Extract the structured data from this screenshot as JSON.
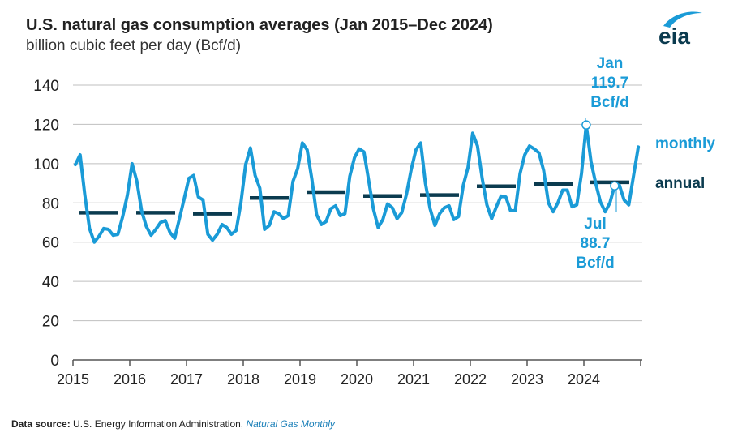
{
  "title": "U.S. natural gas consumption averages (Jan 2015–Dec 2024)",
  "subtitle": "billion cubic feet per day (Bcf/d)",
  "logo_text": "eia",
  "source": {
    "label": "Data source:",
    "agency": "U.S. Energy Information Administration,",
    "publication": "Natural Gas Monthly"
  },
  "colors": {
    "monthly": "#1a9bd7",
    "annual": "#0b3b4f",
    "grid": "#bfbfbf",
    "axis": "#555555"
  },
  "chart_data": {
    "type": "line",
    "xlabel": "",
    "ylabel": "",
    "ylim": [
      0,
      140
    ],
    "yticks": [
      0,
      20,
      40,
      60,
      80,
      100,
      120,
      140
    ],
    "xticks": [
      "2015",
      "2016",
      "2017",
      "2018",
      "2019",
      "2020",
      "2021",
      "2022",
      "2023",
      "2024"
    ],
    "grid": true,
    "series": [
      {
        "name": "monthly",
        "start": "2015-01",
        "values": [
          99.5,
          104.5,
          84,
          67,
          60,
          63,
          67,
          66.5,
          63.5,
          64,
          73,
          84,
          100,
          91,
          76,
          68,
          63.5,
          66.5,
          70,
          71,
          65,
          62,
          72,
          82,
          92.5,
          94,
          83,
          81.5,
          64,
          61,
          64,
          69,
          67.5,
          64,
          66,
          80,
          99.5,
          108,
          94,
          87.5,
          66.5,
          68.5,
          75.5,
          74.5,
          72,
          73.5,
          91,
          97.5,
          110.5,
          107,
          92,
          74,
          69,
          70.5,
          77,
          78.5,
          73.5,
          74.5,
          93.5,
          103,
          107.5,
          106,
          91.5,
          77,
          67.5,
          71.5,
          79.5,
          77.5,
          72,
          75,
          84.5,
          97,
          107,
          110.5,
          90,
          77,
          68.5,
          74.5,
          77.5,
          78.5,
          71.5,
          73,
          89,
          98,
          115.5,
          109,
          92.5,
          79,
          72,
          78,
          83.5,
          83,
          76,
          76,
          95,
          104.5,
          109,
          107.5,
          105.5,
          96.5,
          80,
          75.5,
          80,
          86.5,
          86.5,
          78,
          79,
          95,
          119.7,
          101,
          90,
          80.5,
          75.5,
          80,
          88.7,
          89,
          81.5,
          79,
          94,
          108.5
        ]
      },
      {
        "name": "annual",
        "years": [
          2015,
          2016,
          2017,
          2018,
          2019,
          2020,
          2021,
          2022,
          2023,
          2024
        ],
        "values": [
          75,
          75,
          74.5,
          82.5,
          85.5,
          83.5,
          84,
          88.5,
          89.5,
          90.5
        ]
      }
    ],
    "annotations": [
      {
        "id": "jan",
        "label": [
          "Jan",
          "119.7",
          "Bcf/d"
        ],
        "date": "2024-01",
        "value": 119.7
      },
      {
        "id": "jul",
        "label": [
          "Jul",
          "88.7",
          "Bcf/d"
        ],
        "date": "2024-07",
        "value": 88.7
      }
    ],
    "legend": [
      {
        "label": "monthly",
        "series": "monthly"
      },
      {
        "label": "annual",
        "series": "annual"
      }
    ]
  }
}
